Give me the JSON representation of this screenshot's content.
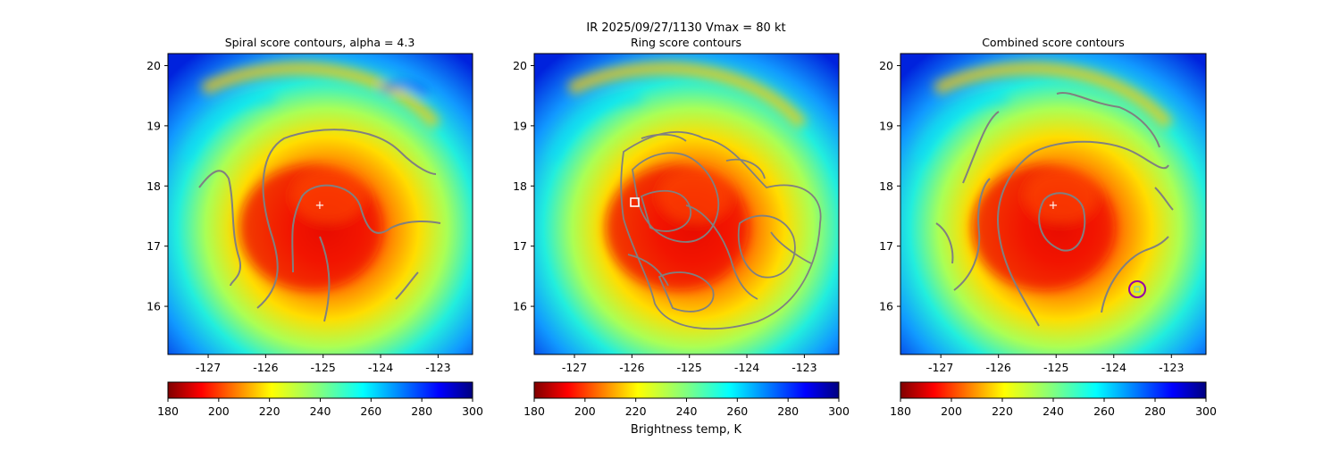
{
  "suptitle": "IR  2025/09/27/1130    Vmax = 80 kt",
  "colorbar_label": "Brightness temp, K",
  "chart_data": [
    {
      "type": "heatmap",
      "title": "Spiral score contours, alpha =  4.3",
      "xlim": [
        -127.7,
        -122.4
      ],
      "ylim": [
        15.2,
        20.2
      ],
      "xticks": [
        "-127",
        "-126",
        "-125",
        "-124",
        "-123"
      ],
      "xtick_values": [
        -127,
        -126,
        -125,
        -124,
        -123
      ],
      "yticks": [
        "16",
        "17",
        "18",
        "19",
        "20"
      ],
      "ytick_values": [
        16,
        17,
        18,
        19,
        20
      ],
      "center_marker": {
        "lon": -125.0,
        "lat": 17.7,
        "symbol": "+",
        "color": "#ffffff"
      },
      "contour_color": "#808080",
      "colorbar": {
        "ticks": [
          "180",
          "200",
          "220",
          "240",
          "260",
          "280",
          "300"
        ],
        "tick_values": [
          180,
          200,
          220,
          240,
          260,
          280,
          300
        ],
        "range": [
          180,
          300
        ],
        "colormap": "jet_r"
      }
    },
    {
      "type": "heatmap",
      "title": "Ring score contours",
      "xlim": [
        -127.7,
        -122.4
      ],
      "ylim": [
        15.2,
        20.2
      ],
      "xticks": [
        "-127",
        "-126",
        "-125",
        "-124",
        "-123"
      ],
      "xtick_values": [
        -127,
        -126,
        -125,
        -124,
        -123
      ],
      "yticks": [
        "16",
        "17",
        "18",
        "19",
        "20"
      ],
      "ytick_values": [
        16,
        17,
        18,
        19,
        20
      ],
      "square_marker": {
        "lon": -125.9,
        "lat": 17.72,
        "symbol": "square",
        "color": "#ffffff"
      },
      "contour_color": "#808080",
      "colorbar": {
        "ticks": [
          "180",
          "200",
          "220",
          "240",
          "260",
          "280",
          "300"
        ],
        "tick_values": [
          180,
          200,
          220,
          240,
          260,
          280,
          300
        ],
        "range": [
          180,
          300
        ],
        "colormap": "jet_r"
      }
    },
    {
      "type": "heatmap",
      "title": "Combined score contours",
      "xlim": [
        -127.7,
        -122.4
      ],
      "ylim": [
        15.2,
        20.2
      ],
      "xticks": [
        "-127",
        "-126",
        "-125",
        "-124",
        "-123"
      ],
      "xtick_values": [
        -127,
        -126,
        -125,
        -124,
        -123
      ],
      "yticks": [
        "16",
        "17",
        "18",
        "19",
        "20"
      ],
      "ytick_values": [
        16,
        17,
        18,
        19,
        20
      ],
      "center_marker": {
        "lon": -125.0,
        "lat": 17.7,
        "symbol": "+",
        "color": "#ffffff"
      },
      "circle_marker": {
        "lon": -123.4,
        "lat": 16.3,
        "symbol": "circle",
        "color": "#9400a8"
      },
      "contour_color": "#808080",
      "colorbar": {
        "ticks": [
          "180",
          "200",
          "220",
          "240",
          "260",
          "280",
          "300"
        ],
        "tick_values": [
          180,
          200,
          220,
          240,
          260,
          280,
          300
        ],
        "range": [
          180,
          300
        ],
        "colormap": "jet_r"
      }
    }
  ]
}
